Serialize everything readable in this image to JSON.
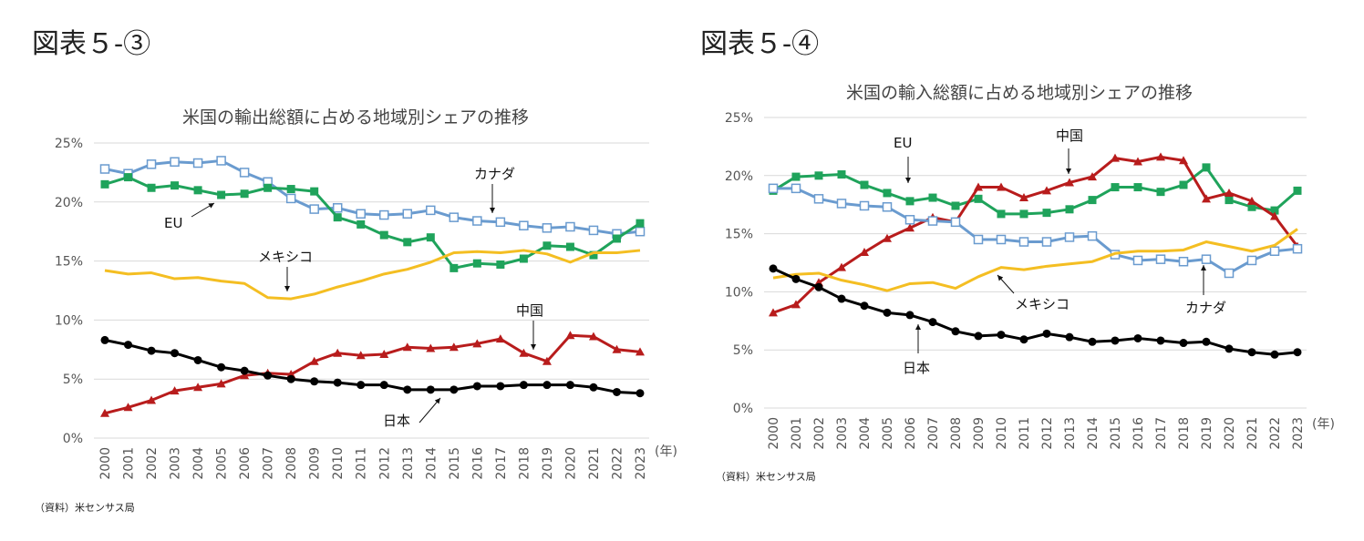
{
  "chart_data": [
    {
      "type": "line",
      "figure_label": "図表５-③",
      "title": "米国の輸出総額に占める地域別シェアの推移",
      "source": "（資料）米センサス局",
      "xlabel": "(年)",
      "ylabel": "",
      "ylim": [
        0,
        25
      ],
      "yticks": [
        "0%",
        "5%",
        "10%",
        "15%",
        "20%",
        "25%"
      ],
      "grid": true,
      "x": [
        "2000",
        "2001",
        "2002",
        "2003",
        "2004",
        "2005",
        "2006",
        "2007",
        "2008",
        "2009",
        "2010",
        "2011",
        "2012",
        "2013",
        "2014",
        "2015",
        "2016",
        "2017",
        "2018",
        "2019",
        "2020",
        "2021",
        "2022",
        "2023"
      ],
      "series": [
        {
          "name": "カナダ",
          "color": "#6a9bcf",
          "marker": "open-square",
          "values": [
            22.8,
            22.4,
            23.2,
            23.4,
            23.3,
            23.5,
            22.5,
            21.7,
            20.3,
            19.4,
            19.5,
            19.0,
            18.9,
            19.0,
            19.3,
            18.7,
            18.4,
            18.3,
            18.0,
            17.8,
            17.9,
            17.6,
            17.3,
            17.5
          ]
        },
        {
          "name": "EU",
          "color": "#1fa35b",
          "marker": "square",
          "values": [
            21.5,
            22.1,
            21.2,
            21.4,
            21.0,
            20.6,
            20.7,
            21.2,
            21.1,
            20.9,
            18.7,
            18.1,
            17.2,
            16.6,
            17.0,
            14.4,
            14.8,
            14.7,
            15.2,
            16.3,
            16.2,
            15.5,
            16.9,
            18.2
          ]
        },
        {
          "name": "メキシコ",
          "color": "#f4be22",
          "marker": "none",
          "values": [
            14.2,
            13.9,
            14.0,
            13.5,
            13.6,
            13.3,
            13.1,
            11.9,
            11.8,
            12.2,
            12.8,
            13.3,
            13.9,
            14.3,
            14.9,
            15.7,
            15.8,
            15.7,
            15.9,
            15.6,
            14.9,
            15.7,
            15.7,
            15.9
          ]
        },
        {
          "name": "中国",
          "color": "#b81c1c",
          "marker": "triangle",
          "values": [
            2.1,
            2.6,
            3.2,
            4.0,
            4.3,
            4.6,
            5.3,
            5.5,
            5.4,
            6.5,
            7.2,
            7.0,
            7.1,
            7.7,
            7.6,
            7.7,
            8.0,
            8.4,
            7.2,
            6.5,
            8.7,
            8.6,
            7.5,
            7.3
          ]
        },
        {
          "name": "日本",
          "color": "#000000",
          "marker": "circle",
          "values": [
            8.3,
            7.9,
            7.4,
            7.2,
            6.6,
            6.0,
            5.7,
            5.3,
            5.0,
            4.8,
            4.7,
            4.5,
            4.5,
            4.1,
            4.1,
            4.1,
            4.4,
            4.4,
            4.5,
            4.5,
            4.5,
            4.3,
            3.9,
            3.8
          ]
        }
      ]
    },
    {
      "type": "line",
      "figure_label": "図表５-④",
      "title": "米国の輸入総額に占める地域別シェアの推移",
      "source": "（資料）米センサス局",
      "xlabel": "(年)",
      "ylabel": "",
      "ylim": [
        0,
        25
      ],
      "yticks": [
        "0%",
        "5%",
        "10%",
        "15%",
        "20%",
        "25%"
      ],
      "grid": true,
      "x": [
        "2000",
        "2001",
        "2002",
        "2003",
        "2004",
        "2005",
        "2006",
        "2007",
        "2008",
        "2009",
        "2010",
        "2011",
        "2012",
        "2013",
        "2014",
        "2015",
        "2016",
        "2017",
        "2018",
        "2019",
        "2020",
        "2021",
        "2022",
        "2023"
      ],
      "series": [
        {
          "name": "EU",
          "color": "#1fa35b",
          "marker": "square",
          "values": [
            18.7,
            19.9,
            20.0,
            20.1,
            19.2,
            18.5,
            17.8,
            18.1,
            17.4,
            18.0,
            16.7,
            16.7,
            16.8,
            17.1,
            17.9,
            19.0,
            19.0,
            18.6,
            19.2,
            20.7,
            17.9,
            17.3,
            17.0,
            18.7
          ]
        },
        {
          "name": "中国",
          "color": "#b81c1c",
          "marker": "triangle",
          "values": [
            8.2,
            8.9,
            10.8,
            12.1,
            13.4,
            14.6,
            15.5,
            16.4,
            16.0,
            19.0,
            19.0,
            18.1,
            18.7,
            19.4,
            19.9,
            21.5,
            21.2,
            21.6,
            21.3,
            18.0,
            18.5,
            17.8,
            16.5,
            13.9
          ]
        },
        {
          "name": "カナダ",
          "color": "#6a9bcf",
          "marker": "open-square",
          "values": [
            18.9,
            18.9,
            18.0,
            17.6,
            17.4,
            17.3,
            16.2,
            16.1,
            16.0,
            14.5,
            14.5,
            14.3,
            14.3,
            14.7,
            14.8,
            13.2,
            12.7,
            12.8,
            12.6,
            12.8,
            11.6,
            12.7,
            13.5,
            13.7
          ]
        },
        {
          "name": "メキシコ",
          "color": "#f4be22",
          "marker": "none",
          "values": [
            11.2,
            11.5,
            11.6,
            11.0,
            10.6,
            10.1,
            10.7,
            10.8,
            10.3,
            11.3,
            12.1,
            11.9,
            12.2,
            12.4,
            12.6,
            13.3,
            13.5,
            13.5,
            13.6,
            14.3,
            13.9,
            13.5,
            14.0,
            15.4
          ]
        },
        {
          "name": "日本",
          "color": "#000000",
          "marker": "circle",
          "values": [
            12.0,
            11.1,
            10.4,
            9.4,
            8.8,
            8.2,
            8.0,
            7.4,
            6.6,
            6.2,
            6.3,
            5.9,
            6.4,
            6.1,
            5.7,
            5.8,
            6.0,
            5.8,
            5.6,
            5.7,
            5.1,
            4.8,
            4.6,
            4.8
          ]
        }
      ]
    }
  ]
}
